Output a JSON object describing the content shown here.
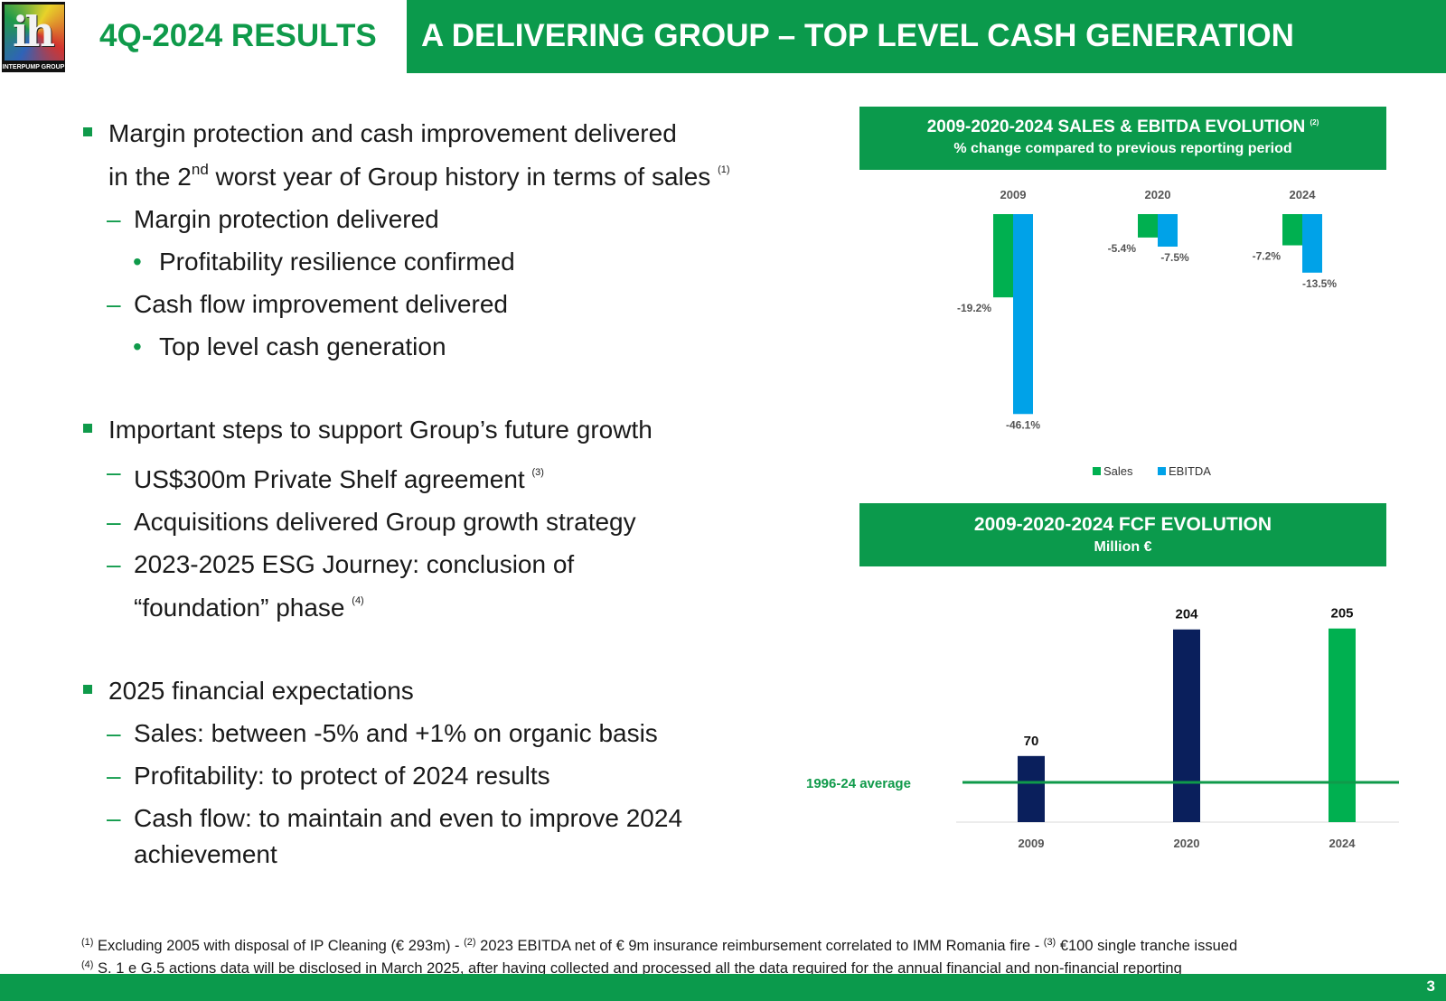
{
  "header": {
    "logo_text": "INTERPUMP GROUP",
    "logo_glyph": "ih",
    "left_title": "4Q-2024 RESULTS",
    "right_title": "A DELIVERING GROUP – TOP LEVEL CASH GENERATION"
  },
  "bullets": {
    "b1_line1": "Margin protection and cash improvement delivered",
    "b1_line2_pre": "in the 2",
    "b1_line2_sup": "nd",
    "b1_line2_post": " worst year of Group history in terms of sales ",
    "b1_note": "(1)",
    "b1_sub1": "Margin protection delivered",
    "b1_sub1_item": "Profitability resilience confirmed",
    "b1_sub2": "Cash flow improvement delivered",
    "b1_sub2_item": "Top level cash generation",
    "b2": "Important steps to support Group’s future growth",
    "b2_sub1": "US$300m Private Shelf agreement ",
    "b2_sub1_note": "(3)",
    "b2_sub2": "Acquisitions delivered Group growth strategy",
    "b2_sub3_line1": "2023-2025 ESG Journey: conclusion of",
    "b2_sub3_line2": "“foundation” phase ",
    "b2_sub3_note": "(4)",
    "b3": "2025 financial expectations",
    "b3_sub1": "Sales: between -5% and +1% on organic basis",
    "b3_sub2": "Profitability: to protect of 2024 results",
    "b3_sub3_line1": "Cash flow: to maintain and even to improve 2024",
    "b3_sub3_line2": "achievement"
  },
  "chart_data": [
    {
      "type": "bar",
      "title": "2009-2020-2024 SALES & EBITDA EVOLUTION",
      "title_note": "(2)",
      "subtitle": "% change compared to previous reporting period",
      "categories": [
        "2009",
        "2020",
        "2024"
      ],
      "series": [
        {
          "name": "Sales",
          "values": [
            -19.2,
            -5.4,
            -7.2
          ],
          "labels": [
            "-19.2%",
            "-5.4%",
            "-7.2%"
          ],
          "color": "#00b050"
        },
        {
          "name": "EBITDA",
          "values": [
            -46.1,
            -7.5,
            -13.5
          ],
          "labels": [
            "-46.1%",
            "-7.5%",
            "-13.5%"
          ],
          "color": "#00a2e8"
        }
      ],
      "ylim": [
        -50,
        0
      ],
      "legend": "bottom"
    },
    {
      "type": "bar",
      "title": "2009-2020-2024 FCF EVOLUTION",
      "subtitle": "Million €",
      "categories": [
        "2009",
        "2020",
        "2024"
      ],
      "values": [
        70,
        204,
        205
      ],
      "labels": [
        "70",
        "204",
        "205"
      ],
      "colors": [
        "#0a1f5c",
        "#0a1f5c",
        "#00b050"
      ],
      "reference_line_label": "1996-24 average",
      "reference_line_color": "#0f9a4a",
      "ylim": [
        0,
        220
      ]
    }
  ],
  "footnotes": {
    "n1_sup": "(1)",
    "n1_text": " Excluding 2005 with disposal of IP Cleaning (€ 293m)  - ",
    "n2_sup": "(2)",
    "n2_text": " 2023 EBITDA net of € 9m insurance reimbursement correlated to IMM Romania fire  - ",
    "n3_sup": "(3)",
    "n3_text": " €100 single tranche issued",
    "n4_sup": "(4)",
    "n4_text": "  S. 1 e G.5 actions data will be disclosed in March 2025, after having collected and processed all the data required for the annual financial and non-financial reporting"
  },
  "page_number": "3",
  "colors": {
    "brand_green": "#0b9a4c",
    "sales_green": "#00b050",
    "ebitda_blue": "#00a2e8",
    "navy": "#0a1f5c"
  }
}
